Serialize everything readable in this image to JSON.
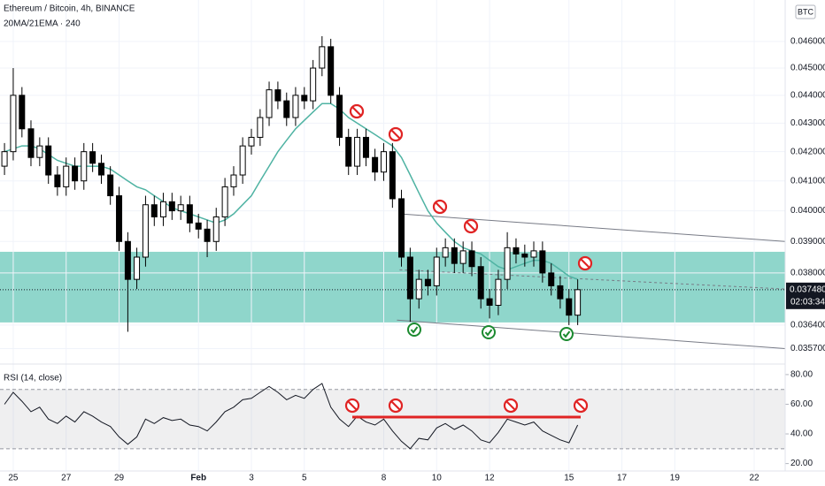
{
  "chart_data": {
    "type": "candlestick",
    "title": "Ethereum / Bitcoin, 4h, BINANCE",
    "subtitle": "20MA/21EMA · 240",
    "currency": "BTC",
    "log_scale": true,
    "grid": true,
    "up_color": "#ffffff",
    "down_color": "#000000",
    "x": [
      -0.33,
      0,
      0.33,
      0.67,
      1,
      1.33,
      1.67,
      2,
      2.33,
      2.67,
      3,
      3.33,
      3.67,
      4,
      4.33,
      4.67,
      5,
      5.33,
      5.67,
      6,
      6.33,
      6.67,
      7,
      7.33,
      7.67,
      8,
      8.33,
      8.67,
      9,
      9.33,
      9.67,
      10,
      10.33,
      10.67,
      11,
      11.33,
      11.67,
      12,
      12.33,
      12.67,
      13,
      13.33,
      13.67,
      14,
      14.33,
      14.67,
      15,
      15.33,
      15.67,
      16,
      16.33,
      16.67,
      17,
      17.33,
      17.67,
      18,
      18.33,
      18.67,
      19,
      19.33,
      19.67,
      20,
      20.33,
      20.67,
      21,
      21.33
    ],
    "open": [
      0.0415,
      0.042,
      0.044,
      0.0428,
      0.0418,
      0.0422,
      0.0412,
      0.0408,
      0.0415,
      0.041,
      0.042,
      0.0416,
      0.0412,
      0.0405,
      0.039,
      0.0378,
      0.0385,
      0.0402,
      0.0398,
      0.0403,
      0.04,
      0.0402,
      0.0396,
      0.0394,
      0.039,
      0.0398,
      0.0408,
      0.0412,
      0.0422,
      0.0425,
      0.0432,
      0.0442,
      0.0438,
      0.0432,
      0.044,
      0.0438,
      0.045,
      0.0458,
      0.044,
      0.0425,
      0.0415,
      0.0425,
      0.0418,
      0.0413,
      0.042,
      0.0404,
      0.0385,
      0.0372,
      0.0378,
      0.0376,
      0.0385,
      0.0388,
      0.0383,
      0.0387,
      0.0382,
      0.0372,
      0.037,
      0.0378,
      0.0388,
      0.0386,
      0.0385,
      0.0387,
      0.038,
      0.0376,
      0.0372,
      0.0367
    ],
    "high": [
      0.0423,
      0.045,
      0.0443,
      0.0431,
      0.0425,
      0.0425,
      0.0415,
      0.0418,
      0.0418,
      0.0423,
      0.0423,
      0.0419,
      0.0415,
      0.0408,
      0.0393,
      0.0388,
      0.0405,
      0.0405,
      0.0406,
      0.0406,
      0.0405,
      0.0405,
      0.0399,
      0.0397,
      0.0401,
      0.0411,
      0.0415,
      0.0425,
      0.0428,
      0.0435,
      0.0445,
      0.0445,
      0.0441,
      0.0443,
      0.0443,
      0.0453,
      0.0462,
      0.0461,
      0.0443,
      0.0428,
      0.0428,
      0.0428,
      0.0421,
      0.0423,
      0.0423,
      0.0407,
      0.0388,
      0.0381,
      0.0381,
      0.0388,
      0.0391,
      0.0391,
      0.039,
      0.039,
      0.0385,
      0.0375,
      0.0381,
      0.0393,
      0.0391,
      0.0389,
      0.039,
      0.039,
      0.0383,
      0.0379,
      0.0375,
      0.0378
    ],
    "low": [
      0.0412,
      0.0417,
      0.0425,
      0.0415,
      0.0415,
      0.0409,
      0.0405,
      0.0405,
      0.0407,
      0.0407,
      0.0413,
      0.0409,
      0.0402,
      0.0387,
      0.0362,
      0.0375,
      0.0382,
      0.0395,
      0.0395,
      0.0397,
      0.0397,
      0.0393,
      0.0391,
      0.0385,
      0.0387,
      0.0395,
      0.0405,
      0.0409,
      0.0419,
      0.0422,
      0.0429,
      0.0435,
      0.0429,
      0.0429,
      0.0435,
      0.0435,
      0.0447,
      0.0437,
      0.0422,
      0.0412,
      0.0412,
      0.0415,
      0.041,
      0.041,
      0.0401,
      0.0382,
      0.0365,
      0.0369,
      0.0373,
      0.0373,
      0.0382,
      0.038,
      0.038,
      0.0379,
      0.0369,
      0.0366,
      0.0367,
      0.0375,
      0.0383,
      0.0382,
      0.0382,
      0.0377,
      0.0373,
      0.0369,
      0.0364,
      0.0364
    ],
    "close": [
      0.042,
      0.044,
      0.0428,
      0.0418,
      0.0422,
      0.0412,
      0.0408,
      0.0415,
      0.041,
      0.042,
      0.0416,
      0.0412,
      0.0405,
      0.039,
      0.0378,
      0.0385,
      0.0402,
      0.0398,
      0.0403,
      0.04,
      0.0402,
      0.0396,
      0.0394,
      0.039,
      0.0398,
      0.0408,
      0.0412,
      0.0422,
      0.0425,
      0.0432,
      0.0442,
      0.0438,
      0.0432,
      0.044,
      0.0438,
      0.045,
      0.0458,
      0.044,
      0.0425,
      0.0415,
      0.0425,
      0.0418,
      0.0413,
      0.042,
      0.0404,
      0.0385,
      0.0372,
      0.0378,
      0.0376,
      0.0385,
      0.0388,
      0.0383,
      0.0387,
      0.0382,
      0.0372,
      0.037,
      0.0378,
      0.0388,
      0.0386,
      0.0385,
      0.0387,
      0.038,
      0.0376,
      0.0372,
      0.0367,
      0.03748
    ],
    "ma": {
      "color": "#4fb3a3",
      "values": [
        0.042,
        0.0421,
        0.0422,
        0.0422,
        0.0421,
        0.0419,
        0.0417,
        0.0416,
        0.0415,
        0.0415,
        0.0415,
        0.0415,
        0.0414,
        0.0412,
        0.041,
        0.0408,
        0.0407,
        0.0405,
        0.0403,
        0.0401,
        0.04,
        0.0399,
        0.0398,
        0.0397,
        0.0396,
        0.0397,
        0.0399,
        0.0402,
        0.0405,
        0.041,
        0.0415,
        0.042,
        0.0424,
        0.0428,
        0.0431,
        0.0434,
        0.0437,
        0.0437,
        0.0435,
        0.0432,
        0.043,
        0.0428,
        0.0426,
        0.0424,
        0.0422,
        0.0418,
        0.0412,
        0.0406,
        0.04,
        0.0396,
        0.0393,
        0.039,
        0.0388,
        0.0387,
        0.0386,
        0.0384,
        0.0382,
        0.0381,
        0.0382,
        0.0383,
        0.0384,
        0.0384,
        0.0383,
        0.0381,
        0.0379,
        0.0378
      ]
    },
    "xlim": [
      -0.5,
      29.17
    ],
    "xticks": [
      {
        "value": 0,
        "label": "25"
      },
      {
        "value": 2,
        "label": "27"
      },
      {
        "value": 4,
        "label": "29"
      },
      {
        "value": 7,
        "label": "Feb"
      },
      {
        "value": 9,
        "label": "3"
      },
      {
        "value": 11,
        "label": "5"
      },
      {
        "value": 14,
        "label": "8"
      },
      {
        "value": 16,
        "label": "10"
      },
      {
        "value": 18,
        "label": "12"
      },
      {
        "value": 21,
        "label": "15"
      },
      {
        "value": 23,
        "label": "17"
      },
      {
        "value": 25,
        "label": "19"
      },
      {
        "value": 28,
        "label": "22"
      }
    ],
    "ylim": [
      0.0353,
      0.0476
    ],
    "yticks": [
      {
        "value": 0.046,
        "label": "0.046000"
      },
      {
        "value": 0.045,
        "label": "0.045000"
      },
      {
        "value": 0.044,
        "label": "0.044000"
      },
      {
        "value": 0.043,
        "label": "0.043000"
      },
      {
        "value": 0.042,
        "label": "0.042000"
      },
      {
        "value": 0.041,
        "label": "0.041000"
      },
      {
        "value": 0.04,
        "label": "0.040000"
      },
      {
        "value": 0.039,
        "label": "0.039000"
      },
      {
        "value": 0.038,
        "label": "0.038000"
      },
      {
        "value": 0.0364,
        "label": "0.036400"
      },
      {
        "value": 0.0357,
        "label": "0.035700"
      }
    ],
    "last_price": {
      "value": 0.03748,
      "label": "0.037480"
    },
    "countdown": "02:03:34",
    "zone": {
      "range": [
        0.03648,
        0.03867
      ],
      "color": "#8fd6cb"
    },
    "lines": [
      {
        "x": [
          14.6,
          29.17
        ],
        "y": [
          0.0399,
          0.039
        ],
        "style": "solid"
      },
      {
        "x": [
          14.5,
          29.17
        ],
        "y": [
          0.03655,
          0.0357
        ],
        "style": "solid"
      },
      {
        "x": [
          14.6,
          29.17
        ],
        "y": [
          0.0381,
          0.0375
        ],
        "style": "dashed"
      }
    ],
    "rsi": {
      "title": "RSI (14, close)",
      "color": "#131722",
      "values": [
        60,
        68,
        62,
        55,
        58,
        50,
        47,
        52,
        48,
        55,
        52,
        48,
        45,
        38,
        33,
        38,
        50,
        47,
        51,
        49,
        50,
        46,
        45,
        42,
        48,
        55,
        58,
        63,
        64,
        68,
        72,
        68,
        63,
        66,
        64,
        70,
        74,
        58,
        50,
        45,
        52,
        48,
        46,
        50,
        42,
        35,
        30,
        37,
        36,
        44,
        47,
        43,
        46,
        42,
        36,
        34,
        41,
        50,
        48,
        46,
        48,
        42,
        39,
        36,
        34,
        46
      ],
      "ylim": [
        15,
        86.5
      ],
      "band": [
        30,
        70
      ],
      "yticks": [
        {
          "value": 80,
          "label": "80.00"
        },
        {
          "value": 60,
          "label": "60.00"
        },
        {
          "value": 40,
          "label": "40.00"
        },
        {
          "value": 20,
          "label": "20.00"
        }
      ]
    }
  }
}
